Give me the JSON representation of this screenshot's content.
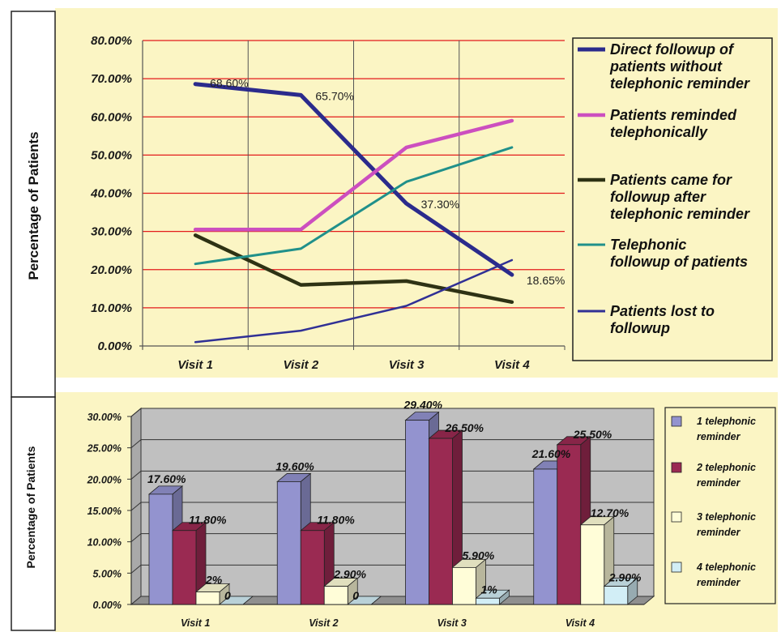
{
  "colors": {
    "page_bg": "#fbf5c4",
    "grid_red": "#e31b1b",
    "top_plot_bg": "#fbf5c4",
    "bottom_plot_bg": "#c0c0c0",
    "series_direct": "#2b2b8c",
    "series_reminded": "#cc4fbf",
    "series_came": "#2e3214",
    "series_telephonic": "#20908a",
    "series_lost": "#303095",
    "bar_1": "#9393cf",
    "bar_2": "#9a2a52",
    "bar_3": "#fffdd8",
    "bar_4": "#d2eef6"
  },
  "chart_data": [
    {
      "type": "line",
      "title": "",
      "xlabel": "",
      "ylabel": "Percentage of Patients",
      "categories": [
        "Visit 1",
        "Visit 2",
        "Visit 3",
        "Visit 4"
      ],
      "y_ticks": [
        "0.00%",
        "10.00%",
        "20.00%",
        "30.00%",
        "40.00%",
        "50.00%",
        "60.00%",
        "70.00%",
        "80.00%"
      ],
      "ylim": [
        0,
        80
      ],
      "grid": true,
      "legend_position": "right",
      "series": [
        {
          "name": "Direct followup of patients without telephonic reminder",
          "legend_lines": [
            "Direct followup of",
            "patients without",
            "telephonic reminder"
          ],
          "color": "#2b2b8c",
          "width": 5,
          "values": [
            68.6,
            65.7,
            37.3,
            18.65
          ],
          "labels": [
            "68.60%",
            "65.70%",
            "37.30%",
            "18.65%"
          ]
        },
        {
          "name": "Patients reminded telephonically",
          "legend_lines": [
            "Patients reminded",
            "telephonically"
          ],
          "color": "#cc4fbf",
          "width": 4.5,
          "values": [
            30.5,
            30.5,
            52,
            59
          ]
        },
        {
          "name": "Patients came for followup after telephonic reminder",
          "legend_lines": [
            "Patients came for",
            "followup after",
            "telephonic reminder"
          ],
          "color": "#2e3214",
          "width": 4.5,
          "values": [
            29,
            16,
            17,
            11.5
          ]
        },
        {
          "name": "Telephonic followup of patients",
          "legend_lines": [
            "Telephonic",
            "followup of patients"
          ],
          "color": "#20908a",
          "width": 3,
          "values": [
            21.5,
            25.5,
            43,
            52
          ]
        },
        {
          "name": "Patients lost to followup",
          "legend_lines": [
            "Patients lost to",
            "followup"
          ],
          "color": "#303095",
          "width": 2.5,
          "values": [
            1,
            4,
            10.5,
            22.5
          ]
        }
      ]
    },
    {
      "type": "bar",
      "title": "",
      "xlabel": "",
      "ylabel": "Percentage of Patients",
      "categories": [
        "Visit 1",
        "Visit 2",
        "Visit 3",
        "Visit 4"
      ],
      "y_ticks": [
        "0.00%",
        "5.00%",
        "10.00%",
        "15.00%",
        "20.00%",
        "25.00%",
        "30.00%"
      ],
      "ylim": [
        0,
        30
      ],
      "grid": true,
      "legend_position": "right",
      "series": [
        {
          "name": "1 telephonic reminder",
          "legend_lines": [
            "1 telephonic",
            "reminder"
          ],
          "color": "#9393cf",
          "values": [
            17.6,
            19.6,
            29.4,
            21.6
          ],
          "labels": [
            "17.60%",
            "19.60%",
            "29.40%",
            "21.60%"
          ]
        },
        {
          "name": "2 telephonic reminder",
          "legend_lines": [
            "2 telephonic",
            "reminder"
          ],
          "color": "#9a2a52",
          "values": [
            11.8,
            11.8,
            26.5,
            25.5
          ],
          "labels": [
            "11.80%",
            "11.80%",
            "26.50%",
            "25.50%"
          ]
        },
        {
          "name": "3 telephonic reminder",
          "legend_lines": [
            "3 telephonic",
            "reminder"
          ],
          "color": "#fffdd8",
          "values": [
            2,
            2.9,
            5.9,
            12.7
          ],
          "labels": [
            "2%",
            "2.90%",
            "5.90%",
            "12.70%"
          ]
        },
        {
          "name": "4 telephonic reminder",
          "legend_lines": [
            "4 telephonic",
            "reminder"
          ],
          "color": "#d2eef6",
          "values": [
            0,
            0,
            1,
            2.9
          ],
          "labels": [
            "0",
            "0",
            "1%",
            "2.90%"
          ]
        }
      ]
    }
  ]
}
